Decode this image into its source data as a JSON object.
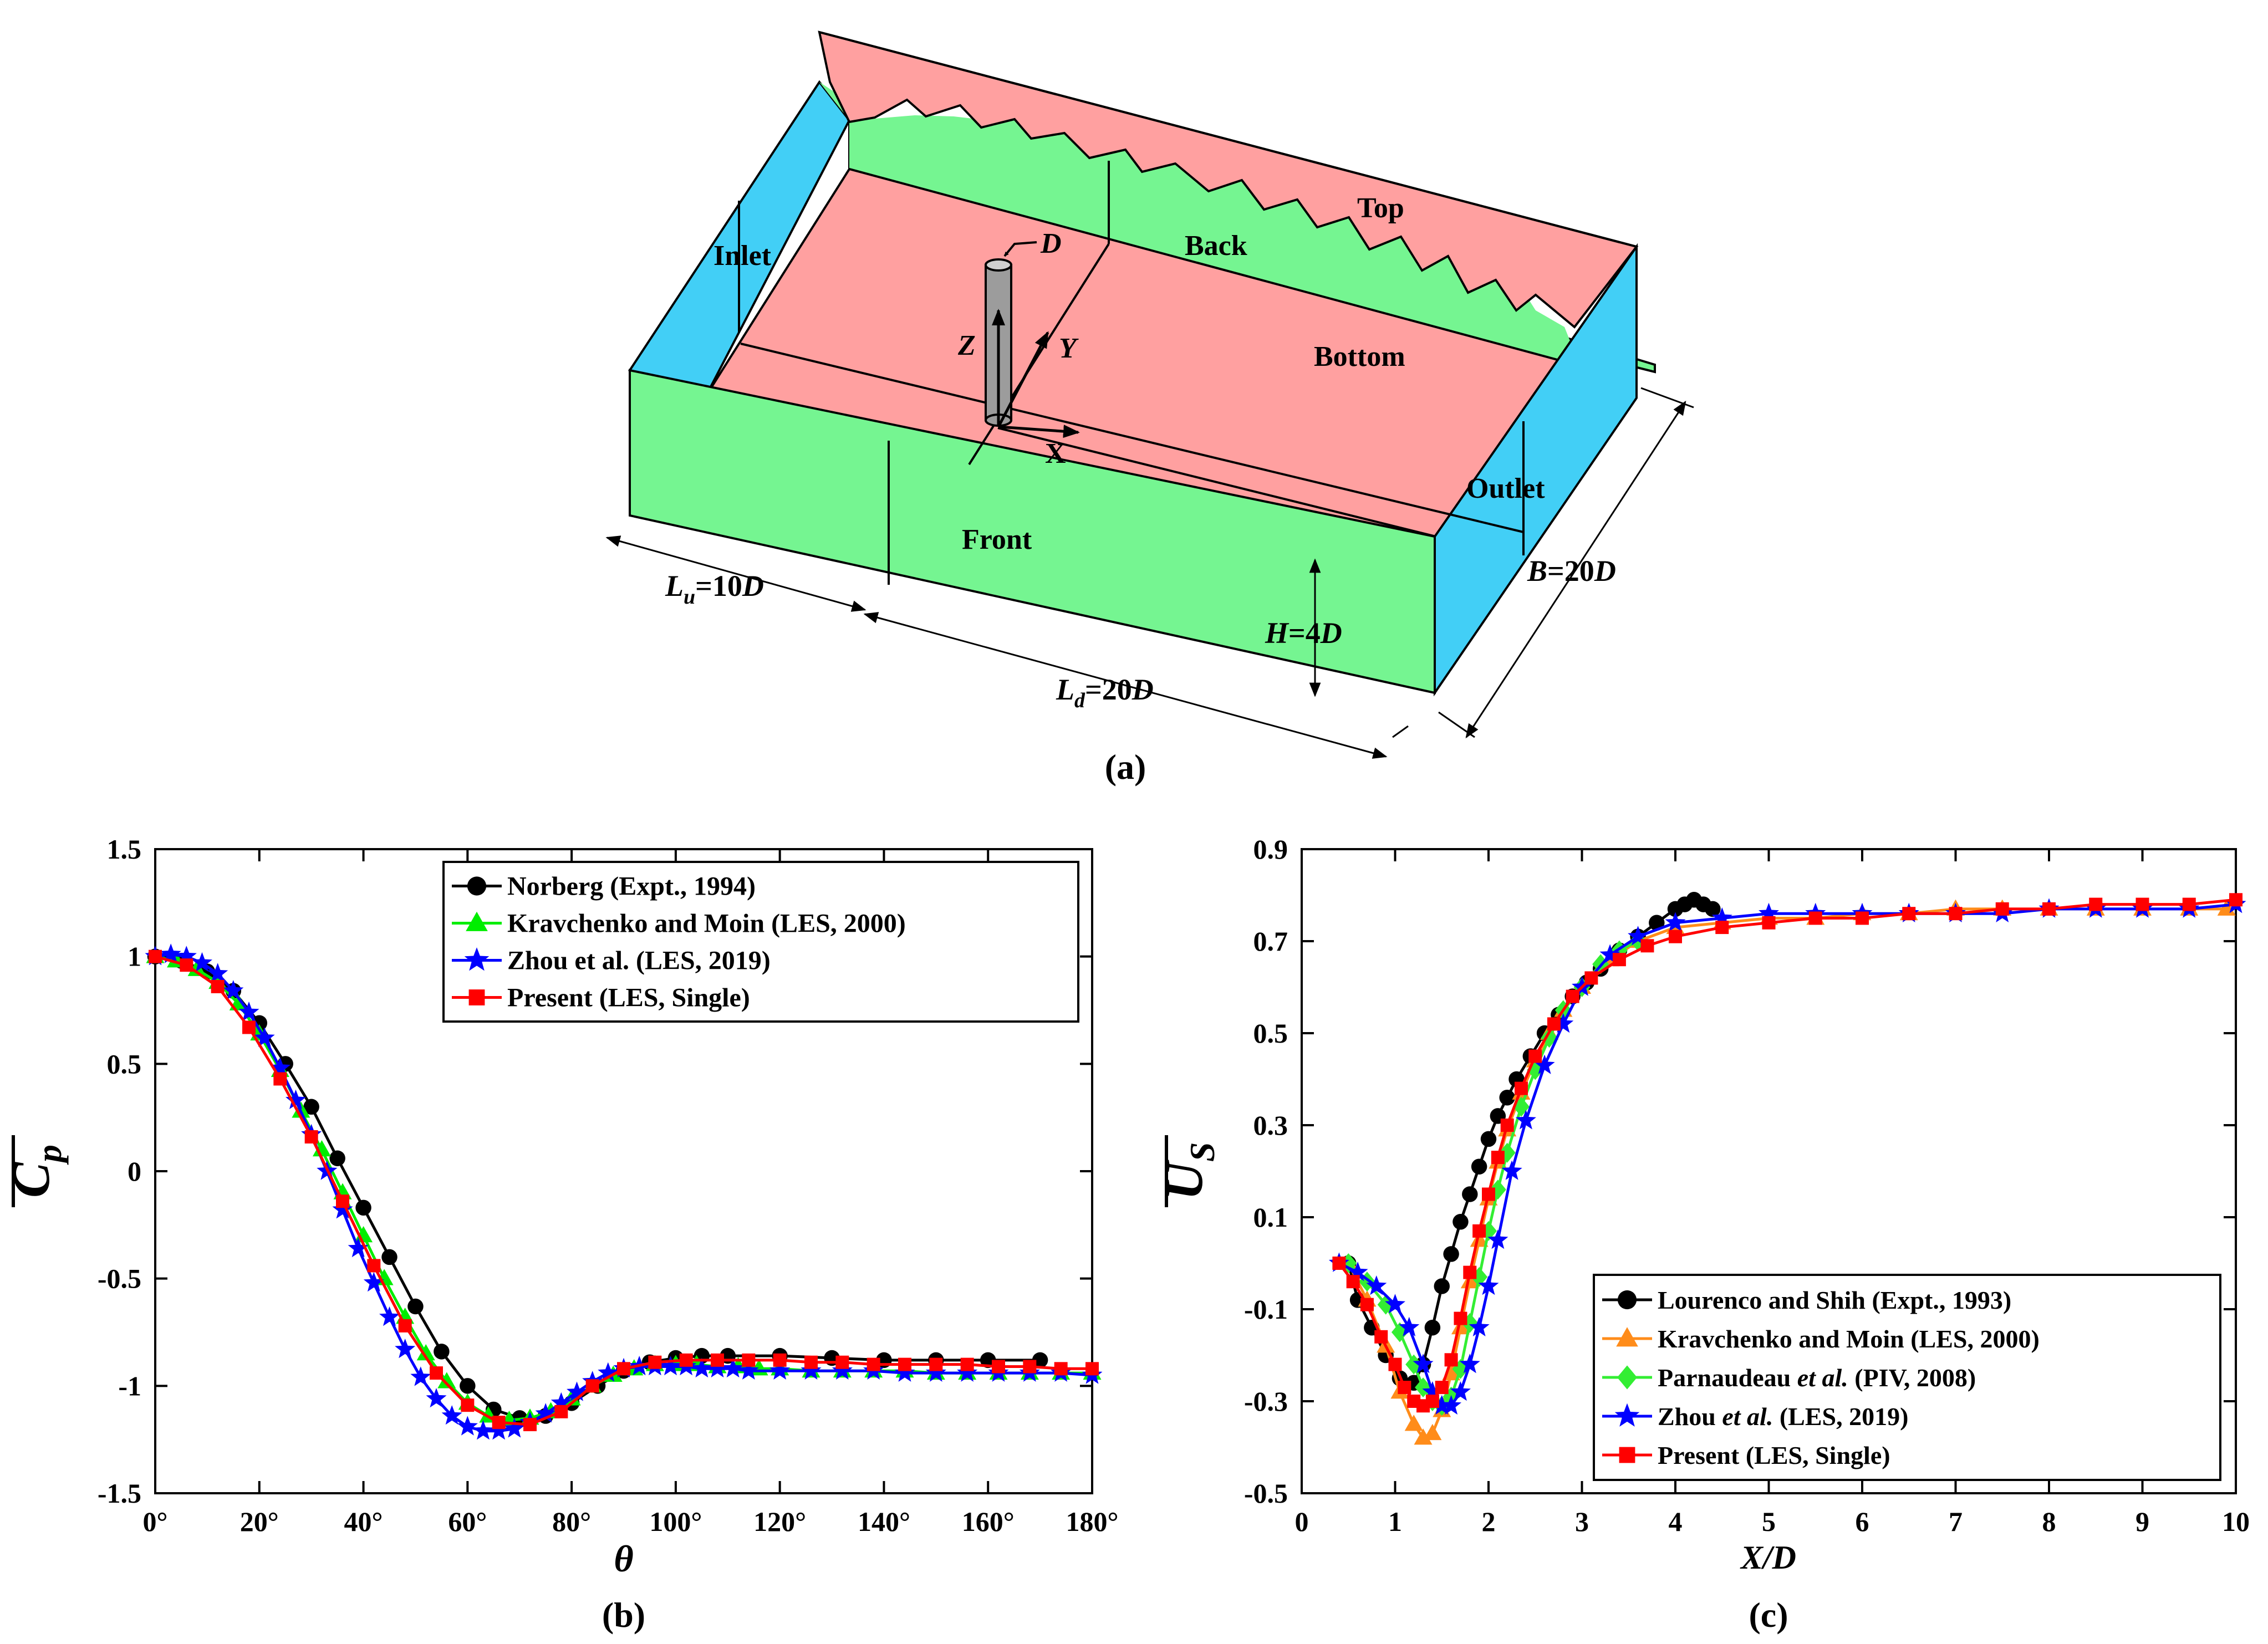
{
  "panel_a": {
    "caption": "(a)",
    "faces": {
      "inlet": "Inlet",
      "back": "Back",
      "top": "Top",
      "bottom": "Bottom",
      "outlet": "Outlet",
      "front": "Front"
    },
    "axes": {
      "x": "X",
      "y": "Y",
      "z": "Z",
      "diameter": "D"
    },
    "dimensions": {
      "upstream": [
        "L",
        "u",
        "=10",
        "D"
      ],
      "downstream": [
        "L",
        "d",
        "=20",
        "D"
      ],
      "height": [
        "H",
        "=4",
        "D"
      ],
      "breadth": [
        "B",
        "=20",
        "D"
      ]
    },
    "colors": {
      "pink": "#FFA0A0",
      "green": "#75F591",
      "blue": "#42CFF6"
    }
  },
  "chart_data": [
    {
      "id": "b",
      "type": "line",
      "caption": "(b)",
      "xlabel": "θ",
      "ylabel": "C",
      "ylabel_sub": "p",
      "xlim": [
        0,
        180
      ],
      "ylim": [
        -1.5,
        1.5
      ],
      "xticks": [
        0,
        20,
        40,
        60,
        80,
        100,
        120,
        140,
        160,
        180
      ],
      "xtick_labels": [
        "0°",
        "20°",
        "40°",
        "60°",
        "80°",
        "100°",
        "120°",
        "140°",
        "160°",
        "180°"
      ],
      "yticks": [
        -1.5,
        -1,
        -0.5,
        0,
        0.5,
        1,
        1.5
      ],
      "ytick_labels": [
        "-1.5",
        "-1",
        "-0.5",
        "0",
        "0.5",
        "1",
        "1.5"
      ],
      "legend_position": "top-left",
      "series": [
        {
          "name": "Norberg (Expt., 1994)",
          "color": "#000000",
          "marker": "circle",
          "x": [
            0,
            5,
            10,
            15,
            20,
            25,
            30,
            35,
            40,
            45,
            50,
            55,
            60,
            65,
            70,
            75,
            80,
            85,
            90,
            95,
            100,
            105,
            110,
            120,
            130,
            140,
            150,
            160,
            170
          ],
          "y": [
            1.0,
            0.98,
            0.93,
            0.84,
            0.69,
            0.5,
            0.3,
            0.06,
            -0.17,
            -0.4,
            -0.63,
            -0.84,
            -1.0,
            -1.11,
            -1.15,
            -1.14,
            -1.08,
            -1.0,
            -0.93,
            -0.89,
            -0.87,
            -0.86,
            -0.86,
            -0.86,
            -0.87,
            -0.88,
            -0.88,
            -0.88,
            -0.88
          ]
        },
        {
          "name": "Kravchenko and Moin (LES, 2000)",
          "color": "#00EE00",
          "marker": "triangle",
          "x": [
            0,
            4,
            8,
            12,
            16,
            20,
            24,
            28,
            32,
            36,
            40,
            44,
            48,
            52,
            56,
            60,
            64,
            68,
            72,
            76,
            80,
            84,
            88,
            92,
            96,
            100,
            104,
            108,
            112,
            116,
            120,
            126,
            132,
            138,
            144,
            150,
            156,
            162,
            168,
            174,
            180
          ],
          "y": [
            1.0,
            0.98,
            0.94,
            0.88,
            0.78,
            0.64,
            0.47,
            0.28,
            0.1,
            -0.1,
            -0.3,
            -0.5,
            -0.68,
            -0.85,
            -0.98,
            -1.08,
            -1.14,
            -1.16,
            -1.15,
            -1.12,
            -1.06,
            -1.0,
            -0.95,
            -0.92,
            -0.9,
            -0.9,
            -0.9,
            -0.91,
            -0.91,
            -0.92,
            -0.92,
            -0.93,
            -0.93,
            -0.93,
            -0.93,
            -0.94,
            -0.94,
            -0.94,
            -0.94,
            -0.94,
            -0.94
          ]
        },
        {
          "name": "Zhou et al. (LES, 2019)",
          "color": "#0000FF",
          "marker": "star",
          "x": [
            0,
            3,
            6,
            9,
            12,
            15,
            18,
            21,
            24,
            27,
            30,
            33,
            36,
            39,
            42,
            45,
            48,
            51,
            54,
            57,
            60,
            63,
            66,
            69,
            72,
            75,
            78,
            81,
            84,
            87,
            90,
            93,
            96,
            99,
            102,
            105,
            108,
            111,
            114,
            120,
            126,
            132,
            138,
            144,
            150,
            156,
            162,
            168,
            174,
            180
          ],
          "y": [
            1.0,
            1.01,
            1.0,
            0.97,
            0.92,
            0.84,
            0.74,
            0.62,
            0.48,
            0.33,
            0.17,
            0.0,
            -0.18,
            -0.36,
            -0.52,
            -0.68,
            -0.83,
            -0.96,
            -1.06,
            -1.14,
            -1.19,
            -1.21,
            -1.21,
            -1.2,
            -1.17,
            -1.13,
            -1.08,
            -1.03,
            -0.98,
            -0.94,
            -0.92,
            -0.91,
            -0.91,
            -0.91,
            -0.91,
            -0.92,
            -0.92,
            -0.92,
            -0.93,
            -0.93,
            -0.93,
            -0.93,
            -0.93,
            -0.94,
            -0.94,
            -0.94,
            -0.94,
            -0.94,
            -0.94,
            -0.95
          ]
        },
        {
          "name": "Present (LES, Single)",
          "color": "#FF0000",
          "marker": "square",
          "x": [
            0,
            6,
            12,
            18,
            24,
            30,
            36,
            42,
            48,
            54,
            60,
            66,
            72,
            78,
            84,
            90,
            96,
            102,
            108,
            114,
            120,
            126,
            132,
            138,
            144,
            150,
            156,
            162,
            168,
            174,
            180
          ],
          "y": [
            1.0,
            0.96,
            0.86,
            0.67,
            0.43,
            0.16,
            -0.14,
            -0.44,
            -0.72,
            -0.94,
            -1.09,
            -1.17,
            -1.18,
            -1.12,
            -1.0,
            -0.92,
            -0.89,
            -0.88,
            -0.88,
            -0.88,
            -0.88,
            -0.89,
            -0.89,
            -0.9,
            -0.9,
            -0.9,
            -0.9,
            -0.91,
            -0.91,
            -0.92,
            -0.92
          ]
        }
      ]
    },
    {
      "id": "c",
      "type": "line",
      "caption": "(c)",
      "xlabel": "X/D",
      "ylabel": "U",
      "ylabel_sub": "S",
      "xlim": [
        0,
        10
      ],
      "ylim": [
        -0.5,
        0.9
      ],
      "xticks": [
        0,
        1,
        2,
        3,
        4,
        5,
        6,
        7,
        8,
        9,
        10
      ],
      "xtick_labels": [
        "0",
        "1",
        "2",
        "3",
        "4",
        "5",
        "6",
        "7",
        "8",
        "9",
        "10"
      ],
      "yticks": [
        -0.5,
        -0.3,
        -0.1,
        0.1,
        0.3,
        0.5,
        0.7,
        0.9
      ],
      "ytick_labels": [
        "-0.5",
        "-0.3",
        "-0.1",
        "0.1",
        "0.3",
        "0.5",
        "0.7",
        "0.9"
      ],
      "legend_position": "bottom-right",
      "series": [
        {
          "name": "Lourenco and Shih (Expt., 1993)",
          "name_parts": [
            "Lourenco and Shih (Expt., 1993)"
          ],
          "color": "#000000",
          "marker": "circle",
          "x": [
            0.5,
            0.6,
            0.75,
            0.9,
            1.05,
            1.2,
            1.3,
            1.4,
            1.5,
            1.6,
            1.7,
            1.8,
            1.9,
            2.0,
            2.1,
            2.2,
            2.3,
            2.45,
            2.6,
            2.75,
            2.9,
            3.05,
            3.2,
            3.4,
            3.6,
            3.8,
            4.0,
            4.1,
            4.2,
            4.3,
            4.4
          ],
          "y": [
            0.0,
            -0.08,
            -0.14,
            -0.2,
            -0.25,
            -0.26,
            -0.22,
            -0.14,
            -0.05,
            0.02,
            0.09,
            0.15,
            0.21,
            0.27,
            0.32,
            0.36,
            0.4,
            0.45,
            0.5,
            0.54,
            0.58,
            0.61,
            0.64,
            0.68,
            0.71,
            0.74,
            0.77,
            0.78,
            0.79,
            0.78,
            0.77
          ]
        },
        {
          "name": "Kravchenko and Moin (LES, 2000)",
          "name_parts": [
            "Kravchenko and Moin (LES, 2000)"
          ],
          "color": "#FF8C1A",
          "marker": "triangle",
          "x": [
            0.5,
            0.7,
            0.9,
            1.05,
            1.2,
            1.3,
            1.4,
            1.5,
            1.6,
            1.7,
            1.8,
            1.9,
            2.0,
            2.1,
            2.2,
            2.35,
            2.5,
            2.65,
            2.8,
            3.0,
            3.3,
            3.6,
            4.0,
            4.5,
            5.0,
            5.5,
            6.0,
            6.5,
            7.0,
            7.5,
            8.0,
            8.5,
            9.0,
            9.5,
            9.9
          ],
          "y": [
            0.0,
            -0.08,
            -0.18,
            -0.28,
            -0.35,
            -0.38,
            -0.37,
            -0.32,
            -0.24,
            -0.14,
            -0.04,
            0.05,
            0.14,
            0.22,
            0.29,
            0.37,
            0.44,
            0.5,
            0.55,
            0.6,
            0.66,
            0.7,
            0.73,
            0.74,
            0.75,
            0.75,
            0.76,
            0.76,
            0.77,
            0.77,
            0.77,
            0.77,
            0.77,
            0.77,
            0.77
          ]
        },
        {
          "name": "Parnaudeau et al. (PIV, 2008)",
          "name_parts": [
            "Parnaudeau ",
            "et al.",
            " (PIV, 2008)"
          ],
          "color": "#33EE33",
          "marker": "diamond",
          "x": [
            0.5,
            0.7,
            0.9,
            1.05,
            1.2,
            1.3,
            1.4,
            1.5,
            1.6,
            1.7,
            1.8,
            1.9,
            2.0,
            2.1,
            2.2,
            2.35,
            2.5,
            2.65,
            2.8,
            3.0,
            3.2,
            3.4,
            3.6
          ],
          "y": [
            0.0,
            -0.04,
            -0.09,
            -0.15,
            -0.22,
            -0.27,
            -0.3,
            -0.31,
            -0.29,
            -0.23,
            -0.13,
            -0.03,
            0.07,
            0.16,
            0.24,
            0.34,
            0.42,
            0.49,
            0.55,
            0.6,
            0.65,
            0.68,
            0.7
          ]
        },
        {
          "name": "Zhou et al. (LES, 2019)",
          "name_parts": [
            "Zhou ",
            "et al.",
            " (LES, 2019)"
          ],
          "color": "#0000FF",
          "marker": "star",
          "x": [
            0.4,
            0.6,
            0.8,
            1.0,
            1.15,
            1.3,
            1.4,
            1.5,
            1.6,
            1.7,
            1.8,
            1.9,
            2.0,
            2.1,
            2.25,
            2.4,
            2.6,
            2.8,
            3.0,
            3.3,
            3.6,
            4.0,
            4.5,
            5.0,
            5.5,
            6.0,
            6.5,
            7.0,
            7.5,
            8.0,
            8.5,
            9.0,
            9.5,
            10.0
          ],
          "y": [
            0.0,
            -0.02,
            -0.05,
            -0.09,
            -0.14,
            -0.22,
            -0.28,
            -0.31,
            -0.31,
            -0.28,
            -0.22,
            -0.14,
            -0.05,
            0.05,
            0.2,
            0.31,
            0.43,
            0.52,
            0.6,
            0.67,
            0.71,
            0.74,
            0.75,
            0.76,
            0.76,
            0.76,
            0.76,
            0.76,
            0.76,
            0.77,
            0.77,
            0.77,
            0.77,
            0.78
          ]
        },
        {
          "name": "Present (LES, Single)",
          "name_parts": [
            "Present (LES, Single)"
          ],
          "color": "#FF0000",
          "marker": "square",
          "x": [
            0.4,
            0.55,
            0.7,
            0.85,
            1.0,
            1.1,
            1.2,
            1.3,
            1.4,
            1.5,
            1.6,
            1.7,
            1.8,
            1.9,
            2.0,
            2.1,
            2.2,
            2.35,
            2.5,
            2.7,
            2.9,
            3.1,
            3.4,
            3.7,
            4.0,
            4.5,
            5.0,
            5.5,
            6.0,
            6.5,
            7.0,
            7.5,
            8.0,
            8.5,
            9.0,
            9.5,
            10.0
          ],
          "y": [
            0.0,
            -0.04,
            -0.09,
            -0.16,
            -0.22,
            -0.27,
            -0.3,
            -0.31,
            -0.3,
            -0.27,
            -0.21,
            -0.12,
            -0.02,
            0.07,
            0.15,
            0.23,
            0.3,
            0.38,
            0.45,
            0.52,
            0.58,
            0.62,
            0.66,
            0.69,
            0.71,
            0.73,
            0.74,
            0.75,
            0.75,
            0.76,
            0.76,
            0.77,
            0.77,
            0.78,
            0.78,
            0.78,
            0.79
          ]
        }
      ]
    }
  ]
}
